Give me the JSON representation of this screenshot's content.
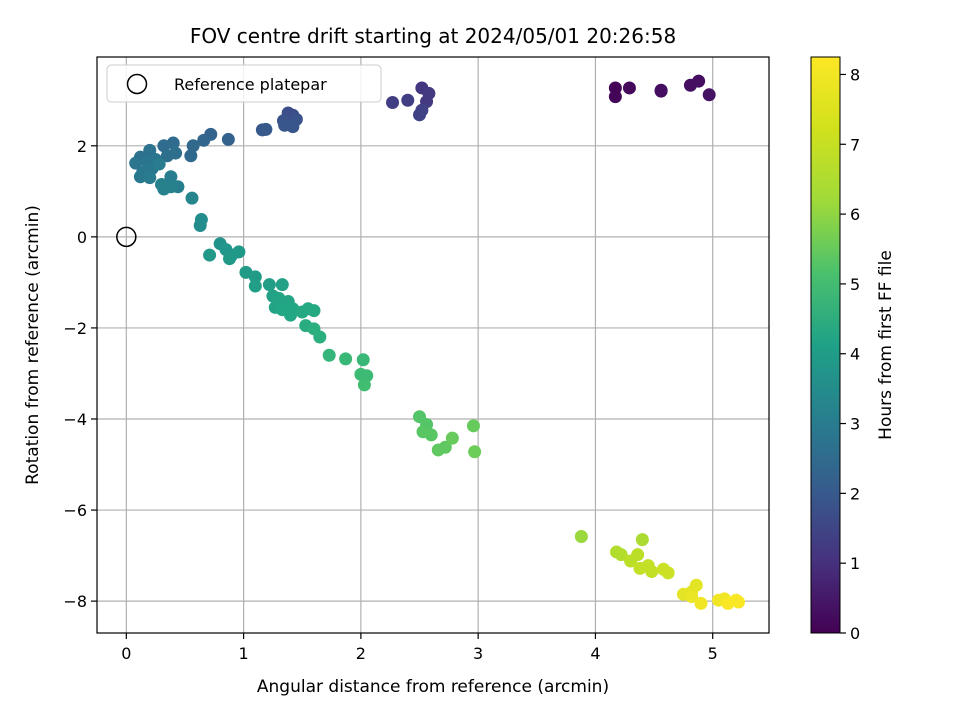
{
  "chart_data": {
    "type": "scatter",
    "title": "FOV centre drift starting at 2024/05/01 20:26:58",
    "xlabel": "Angular distance from reference (arcmin)",
    "ylabel": "Rotation from reference (arcmin)",
    "xlim": [
      -0.25,
      5.48
    ],
    "ylim": [
      -8.7,
      3.95
    ],
    "xticks": [
      0,
      1,
      2,
      3,
      4,
      5
    ],
    "yticks": [
      -8,
      -6,
      -4,
      -2,
      0,
      2
    ],
    "grid": true,
    "legend": {
      "placement": "top-left",
      "entries": [
        "Reference platepar"
      ]
    },
    "reference_point": {
      "x": 0,
      "y": 0
    },
    "colorbar": {
      "label": "Hours from first FF file",
      "colormap": "viridis",
      "range": [
        0,
        8.25
      ],
      "ticks": [
        0,
        1,
        2,
        3,
        4,
        5,
        6,
        7,
        8
      ]
    },
    "points": [
      {
        "x": 4.17,
        "y": 3.27,
        "c": 0.1
      },
      {
        "x": 4.17,
        "y": 3.08,
        "c": 0.1
      },
      {
        "x": 4.29,
        "y": 3.27,
        "c": 0.2
      },
      {
        "x": 4.56,
        "y": 3.22,
        "c": 0.3
      },
      {
        "x": 4.56,
        "y": 3.2,
        "c": 0.3
      },
      {
        "x": 4.81,
        "y": 3.33,
        "c": 0.3
      },
      {
        "x": 4.88,
        "y": 3.42,
        "c": 0.3
      },
      {
        "x": 4.97,
        "y": 3.12,
        "c": 0.4
      },
      {
        "x": 2.52,
        "y": 3.27,
        "c": 1.3
      },
      {
        "x": 2.58,
        "y": 3.15,
        "c": 1.4
      },
      {
        "x": 2.56,
        "y": 2.97,
        "c": 1.4
      },
      {
        "x": 2.4,
        "y": 3.0,
        "c": 1.5
      },
      {
        "x": 2.27,
        "y": 2.95,
        "c": 1.5
      },
      {
        "x": 2.5,
        "y": 2.68,
        "c": 1.6
      },
      {
        "x": 2.52,
        "y": 2.78,
        "c": 1.6
      },
      {
        "x": 1.38,
        "y": 2.72,
        "c": 2.0
      },
      {
        "x": 1.42,
        "y": 2.67,
        "c": 2.0
      },
      {
        "x": 1.45,
        "y": 2.58,
        "c": 2.1
      },
      {
        "x": 1.34,
        "y": 2.55,
        "c": 2.1
      },
      {
        "x": 1.35,
        "y": 2.45,
        "c": 2.2
      },
      {
        "x": 1.42,
        "y": 2.42,
        "c": 2.2
      },
      {
        "x": 1.16,
        "y": 2.35,
        "c": 2.3
      },
      {
        "x": 1.19,
        "y": 2.36,
        "c": 2.3
      },
      {
        "x": 0.72,
        "y": 2.25,
        "c": 2.6
      },
      {
        "x": 0.87,
        "y": 2.14,
        "c": 2.6
      },
      {
        "x": 0.66,
        "y": 2.12,
        "c": 2.7
      },
      {
        "x": 0.57,
        "y": 2.0,
        "c": 2.8
      },
      {
        "x": 0.55,
        "y": 1.78,
        "c": 2.8
      },
      {
        "x": 0.4,
        "y": 2.06,
        "c": 2.9
      },
      {
        "x": 0.32,
        "y": 2.0,
        "c": 2.9
      },
      {
        "x": 0.42,
        "y": 1.84,
        "c": 3.0
      },
      {
        "x": 0.35,
        "y": 1.78,
        "c": 3.0
      },
      {
        "x": 0.2,
        "y": 1.9,
        "c": 3.1
      },
      {
        "x": 0.12,
        "y": 1.75,
        "c": 3.1
      },
      {
        "x": 0.08,
        "y": 1.62,
        "c": 3.2
      },
      {
        "x": 0.18,
        "y": 1.65,
        "c": 3.2
      },
      {
        "x": 0.25,
        "y": 1.7,
        "c": 3.2
      },
      {
        "x": 0.14,
        "y": 1.42,
        "c": 3.3
      },
      {
        "x": 0.22,
        "y": 1.5,
        "c": 3.3
      },
      {
        "x": 0.12,
        "y": 1.32,
        "c": 3.3
      },
      {
        "x": 0.2,
        "y": 1.3,
        "c": 3.4
      },
      {
        "x": 0.28,
        "y": 1.6,
        "c": 3.4
      },
      {
        "x": 0.38,
        "y": 1.32,
        "c": 3.5
      },
      {
        "x": 0.44,
        "y": 1.1,
        "c": 3.5
      },
      {
        "x": 0.32,
        "y": 1.05,
        "c": 3.6
      },
      {
        "x": 0.3,
        "y": 1.15,
        "c": 3.6
      },
      {
        "x": 0.38,
        "y": 1.1,
        "c": 3.6
      },
      {
        "x": 0.56,
        "y": 0.85,
        "c": 3.8
      },
      {
        "x": 0.64,
        "y": 0.38,
        "c": 4.0
      },
      {
        "x": 0.63,
        "y": 0.25,
        "c": 4.0
      },
      {
        "x": 0.8,
        "y": -0.15,
        "c": 4.2
      },
      {
        "x": 0.85,
        "y": -0.28,
        "c": 4.3
      },
      {
        "x": 0.9,
        "y": -0.4,
        "c": 4.3
      },
      {
        "x": 0.96,
        "y": -0.33,
        "c": 4.4
      },
      {
        "x": 0.88,
        "y": -0.48,
        "c": 4.4
      },
      {
        "x": 0.71,
        "y": -0.4,
        "c": 4.4
      },
      {
        "x": 1.02,
        "y": -0.78,
        "c": 4.5
      },
      {
        "x": 1.1,
        "y": -0.88,
        "c": 4.5
      },
      {
        "x": 1.1,
        "y": -1.08,
        "c": 4.6
      },
      {
        "x": 1.22,
        "y": -1.05,
        "c": 4.6
      },
      {
        "x": 1.25,
        "y": -1.3,
        "c": 4.7
      },
      {
        "x": 1.33,
        "y": -1.05,
        "c": 4.7
      },
      {
        "x": 1.3,
        "y": -1.35,
        "c": 4.8
      },
      {
        "x": 1.38,
        "y": -1.42,
        "c": 4.8
      },
      {
        "x": 1.27,
        "y": -1.55,
        "c": 4.8
      },
      {
        "x": 1.33,
        "y": -1.6,
        "c": 4.9
      },
      {
        "x": 1.42,
        "y": -1.58,
        "c": 4.9
      },
      {
        "x": 1.4,
        "y": -1.72,
        "c": 4.9
      },
      {
        "x": 1.5,
        "y": -1.65,
        "c": 5.0
      },
      {
        "x": 1.55,
        "y": -1.58,
        "c": 5.0
      },
      {
        "x": 1.6,
        "y": -1.62,
        "c": 5.0
      },
      {
        "x": 1.53,
        "y": -1.95,
        "c": 5.1
      },
      {
        "x": 1.6,
        "y": -2.02,
        "c": 5.2
      },
      {
        "x": 1.65,
        "y": -2.2,
        "c": 5.2
      },
      {
        "x": 1.73,
        "y": -2.6,
        "c": 5.4
      },
      {
        "x": 1.87,
        "y": -2.68,
        "c": 5.5
      },
      {
        "x": 2.02,
        "y": -2.7,
        "c": 5.5
      },
      {
        "x": 2.0,
        "y": -3.02,
        "c": 5.6
      },
      {
        "x": 2.05,
        "y": -3.05,
        "c": 5.6
      },
      {
        "x": 2.03,
        "y": -3.25,
        "c": 5.7
      },
      {
        "x": 2.5,
        "y": -3.95,
        "c": 6.0
      },
      {
        "x": 2.56,
        "y": -4.12,
        "c": 6.0
      },
      {
        "x": 2.53,
        "y": -4.28,
        "c": 6.1
      },
      {
        "x": 2.6,
        "y": -4.35,
        "c": 6.1
      },
      {
        "x": 2.66,
        "y": -4.68,
        "c": 6.2
      },
      {
        "x": 2.72,
        "y": -4.62,
        "c": 6.2
      },
      {
        "x": 2.78,
        "y": -4.42,
        "c": 6.3
      },
      {
        "x": 2.96,
        "y": -4.15,
        "c": 6.3
      },
      {
        "x": 2.97,
        "y": -4.72,
        "c": 6.4
      },
      {
        "x": 3.88,
        "y": -6.58,
        "c": 7.0
      },
      {
        "x": 4.18,
        "y": -6.92,
        "c": 7.3
      },
      {
        "x": 4.22,
        "y": -6.98,
        "c": 7.3
      },
      {
        "x": 4.4,
        "y": -6.65,
        "c": 7.2
      },
      {
        "x": 4.3,
        "y": -7.12,
        "c": 7.4
      },
      {
        "x": 4.36,
        "y": -6.98,
        "c": 7.4
      },
      {
        "x": 4.38,
        "y": -7.28,
        "c": 7.5
      },
      {
        "x": 4.45,
        "y": -7.22,
        "c": 7.5
      },
      {
        "x": 4.48,
        "y": -7.35,
        "c": 7.5
      },
      {
        "x": 4.58,
        "y": -7.3,
        "c": 7.6
      },
      {
        "x": 4.62,
        "y": -7.38,
        "c": 7.6
      },
      {
        "x": 4.75,
        "y": -7.85,
        "c": 7.9
      },
      {
        "x": 4.82,
        "y": -7.8,
        "c": 7.9
      },
      {
        "x": 4.86,
        "y": -7.65,
        "c": 7.9
      },
      {
        "x": 4.82,
        "y": -7.9,
        "c": 8.0
      },
      {
        "x": 4.9,
        "y": -8.05,
        "c": 8.1
      },
      {
        "x": 5.05,
        "y": -7.98,
        "c": 8.1
      },
      {
        "x": 5.1,
        "y": -7.95,
        "c": 8.1
      },
      {
        "x": 5.13,
        "y": -8.05,
        "c": 8.2
      },
      {
        "x": 5.2,
        "y": -7.98,
        "c": 8.2
      },
      {
        "x": 5.22,
        "y": -8.02,
        "c": 8.2
      }
    ]
  }
}
